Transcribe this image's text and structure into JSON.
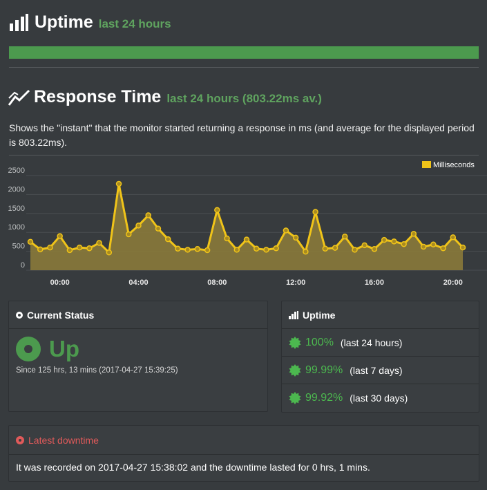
{
  "uptime_section": {
    "title": "Uptime",
    "subtitle": "last 24 hours",
    "bar_percent": 100
  },
  "response_section": {
    "title": "Response Time",
    "subtitle": "last 24 hours (803.22ms av.)",
    "description": "Shows the \"instant\" that the monitor started returning a response in ms (and average for the displayed period is 803.22ms)."
  },
  "chart_data": {
    "type": "area",
    "series": [
      {
        "name": "Milliseconds",
        "color": "#f0c419",
        "values": [
          750,
          550,
          600,
          900,
          530,
          600,
          580,
          720,
          470,
          2280,
          950,
          1180,
          1450,
          1100,
          820,
          570,
          540,
          560,
          530,
          1590,
          840,
          540,
          810,
          570,
          540,
          580,
          1050,
          860,
          490,
          1540,
          570,
          590,
          890,
          540,
          660,
          560,
          800,
          760,
          690,
          960,
          620,
          680,
          580,
          870,
          600
        ]
      }
    ],
    "x_tick_labels": [
      "00:00",
      "04:00",
      "08:00",
      "12:00",
      "16:00",
      "20:00"
    ],
    "y_tick_labels": [
      "0",
      "500",
      "1000",
      "1500",
      "2000",
      "2500"
    ],
    "ylim": [
      0,
      2500
    ],
    "legend_position": "top-right"
  },
  "status_panel": {
    "title": "Current Status",
    "state": "Up",
    "since": "Since 125 hrs, 13 mins (2017-04-27 15:39:25)"
  },
  "uptime_panel": {
    "title": "Uptime",
    "rows": [
      {
        "percent": "100%",
        "period": "(last 24 hours)"
      },
      {
        "percent": "99.99%",
        "period": "(last 7 days)"
      },
      {
        "percent": "99.92%",
        "period": "(last 30 days)"
      }
    ]
  },
  "downtime_panel": {
    "title": "Latest downtime",
    "text": "It was recorded on 2017-04-27 15:38:02 and the downtime lasted for 0 hrs, 1 mins."
  }
}
